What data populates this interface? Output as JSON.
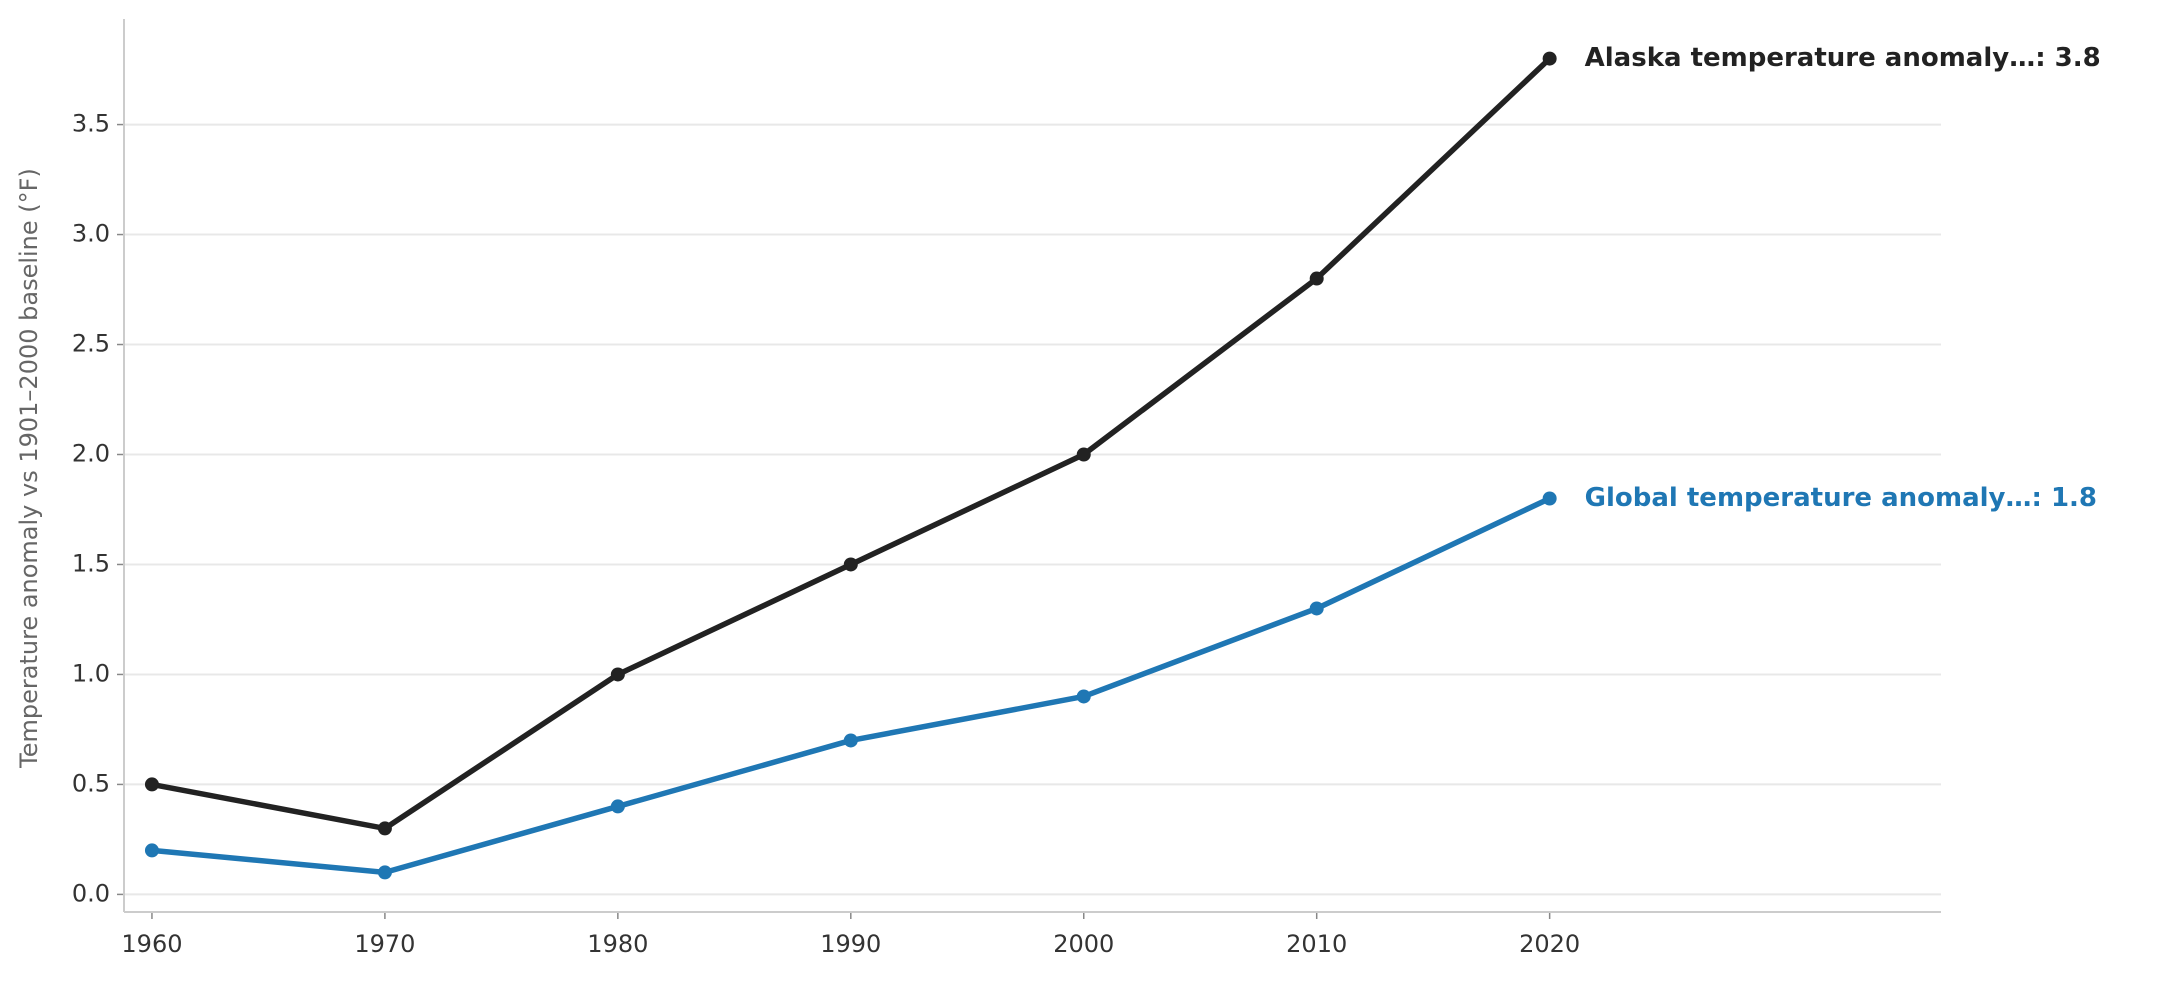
{
  "chart_data": {
    "type": "line",
    "y_label": "Temperature anomaly vs 1901–2000 baseline (°F)",
    "x": [
      1960,
      1970,
      1980,
      1990,
      2000,
      2010,
      2020
    ],
    "series": [
      {
        "name": "Alaska temperature anomaly…",
        "end_label": "Alaska temperature anomaly…: 3.8",
        "color": "#222222",
        "values": [
          0.5,
          0.3,
          1.0,
          1.5,
          2.0,
          2.8,
          3.8
        ]
      },
      {
        "name": "Global temperature anomaly…",
        "end_label": "Global temperature anomaly…: 1.8",
        "color": "#1f77b4",
        "values": [
          0.2,
          0.1,
          0.4,
          0.7,
          0.9,
          1.3,
          1.8
        ]
      }
    ],
    "xlim": [
      1958.8,
      2036.8
    ],
    "xticks": [
      1960,
      1970,
      1980,
      1990,
      2000,
      2010,
      2020
    ],
    "ylim": [
      -0.08,
      3.98
    ],
    "yticks": [
      {
        "value": 0,
        "label": "0.0"
      },
      0.5,
      {
        "value": 1,
        "label": "1.0"
      },
      1.5,
      {
        "value": 2,
        "label": "2.0"
      },
      2.5,
      {
        "value": 3,
        "label": "3.0"
      },
      3.5
    ],
    "grid": true
  }
}
